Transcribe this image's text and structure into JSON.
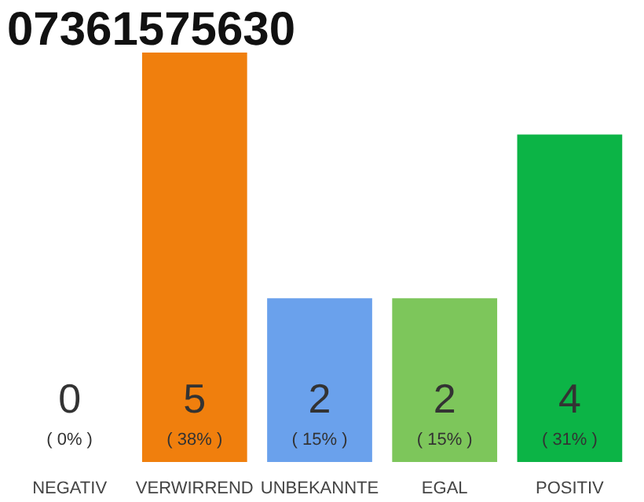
{
  "chart_data": {
    "type": "bar",
    "title": "07361575630",
    "categories": [
      "NEGATIV",
      "VERWIRREND",
      "UNBEKANNTE",
      "EGAL",
      "POSITIV"
    ],
    "values": [
      0,
      5,
      2,
      2,
      4
    ],
    "colors": [
      "#333333",
      "#f07f0d",
      "#6aa1ec",
      "#7dc65b",
      "#0cb446"
    ],
    "data_labels": true,
    "annotations": [
      "( 0% )",
      "( 38% )",
      "( 15% )",
      "( 15% )",
      "( 31% )"
    ],
    "grid": false
  }
}
